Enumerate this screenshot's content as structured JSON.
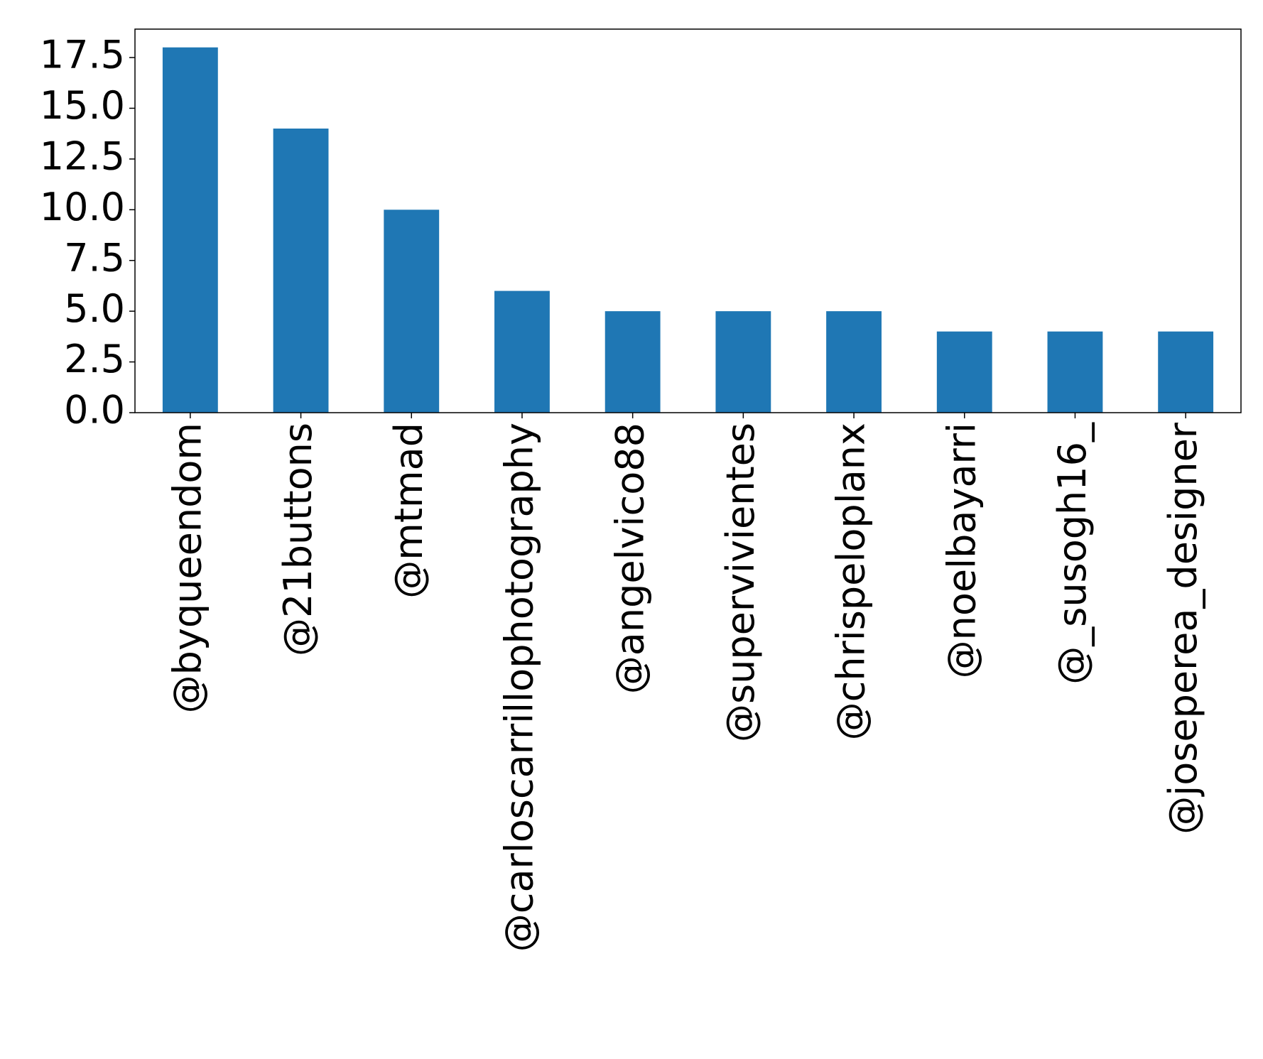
{
  "chart_data": {
    "type": "bar",
    "categories": [
      "@byqueendom",
      "@21buttons",
      "@mtmad",
      "@carloscarrillophotography",
      "@angelvico88",
      "@supervivientes",
      "@chrispeloplanx",
      "@noelbayarri",
      "@_susogh16_",
      "@joseperea_designer"
    ],
    "values": [
      18,
      14,
      10,
      6,
      5,
      5,
      5,
      4,
      4,
      4
    ],
    "color": "#1f77b4",
    "ylim": [
      0,
      18.9
    ],
    "yticks": [
      {
        "value": 0,
        "label": "0.0"
      },
      {
        "value": 2.5,
        "label": "2.5"
      },
      {
        "value": 5,
        "label": "5.0"
      },
      {
        "value": 7.5,
        "label": "7.5"
      },
      {
        "value": 10,
        "label": "10.0"
      },
      {
        "value": 12.5,
        "label": "12.5"
      },
      {
        "value": 15,
        "label": "15.0"
      },
      {
        "value": 17.5,
        "label": "17.5"
      }
    ],
    "grid": false
  }
}
